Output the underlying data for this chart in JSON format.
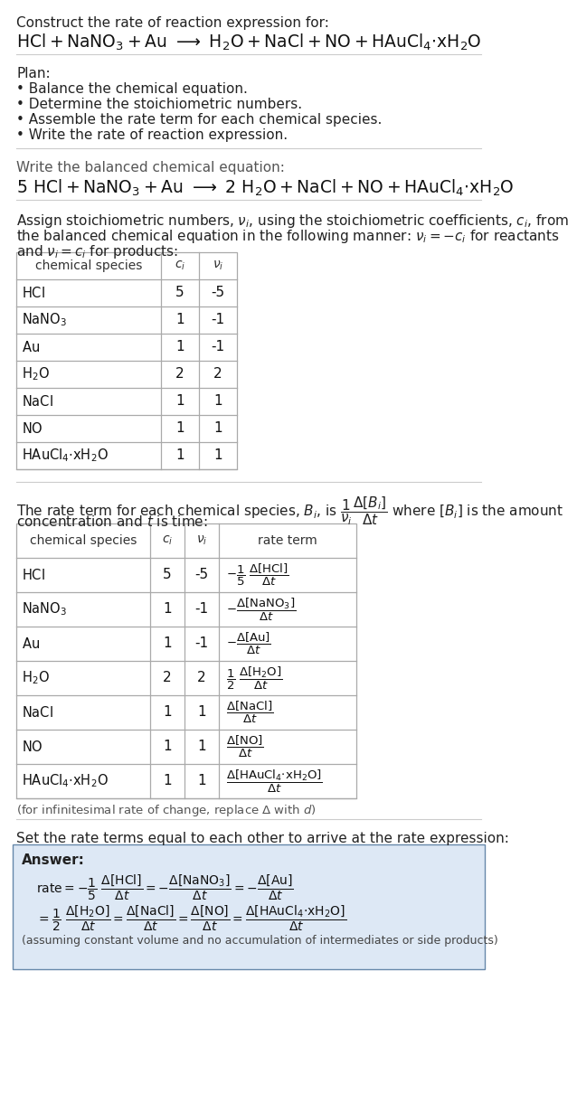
{
  "bg": "#ffffff",
  "text_color": "#111111",
  "gray": "#555555",
  "table_border": "#999999",
  "answer_bg": "#e8f0f8",
  "answer_border": "#7090b0",
  "section1_line1": "Construct the rate of reaction expression for:",
  "section1_eq": "$\\mathrm{HCl + NaNO_3 + Au\\ \\longrightarrow\\ H_2O + NaCl + NO + HAuCl_4{\\cdot}xH_2O}$",
  "section2_header": "Plan:",
  "section2_items": [
    "\\bullet\\ \\ \\mathrm{Balance\\ the\\ chemical\\ equation.}",
    "\\bullet\\ \\ \\mathrm{Determine\\ the\\ stoichiometric\\ numbers.}",
    "\\bullet\\ \\ \\mathrm{Assemble\\ the\\ rate\\ term\\ for\\ each\\ chemical\\ species.}",
    "\\bullet\\ \\ \\mathrm{Write\\ the\\ rate\\ of\\ reaction\\ expression.}"
  ],
  "section3_header": "Write the balanced chemical equation:",
  "section3_eq": "$\\mathrm{5\\ HCl + NaNO_3 + Au\\ \\longrightarrow\\ 2\\ H_2O + NaCl + NO + HAuCl_4{\\cdot}xH_2O}$",
  "section4_line1": "Assign stoichiometric numbers, $\\nu_i$, using the stoichiometric coefficients, $c_i$, from",
  "section4_line2": "the balanced chemical equation in the following manner: $\\nu_i = -c_i$ for reactants",
  "section4_line3": "and $\\nu_i = c_i$ for products:",
  "table1_species": [
    "HCl",
    "NaNO$_3$",
    "Au",
    "H$_2$O",
    "NaCl",
    "NO",
    "HAuCl$_4$$\\cdot$xH$_2$O"
  ],
  "table1_ci": [
    "5",
    "1",
    "1",
    "2",
    "1",
    "1",
    "1"
  ],
  "table1_vi": [
    "-5",
    "-1",
    "-1",
    "2",
    "1",
    "1",
    "1"
  ],
  "section5_line1": "The rate term for each chemical species, $B_i$, is $\\dfrac{1}{\\nu_i}\\dfrac{\\Delta[B_i]}{\\Delta t}$ where $[B_i]$ is the amount",
  "section5_line2": "concentration and $t$ is time:",
  "table2_species": [
    "HCl",
    "NaNO$_3$",
    "Au",
    "H$_2$O",
    "NaCl",
    "NO",
    "HAuCl$_4$$\\cdot$xH$_2$O"
  ],
  "table2_ci": [
    "5",
    "1",
    "1",
    "2",
    "1",
    "1",
    "1"
  ],
  "table2_vi": [
    "-5",
    "-1",
    "-1",
    "2",
    "1",
    "1",
    "1"
  ],
  "infinitesimal_note": "(for infinitesimal rate of change, replace $\\Delta$ with $d$)",
  "section6_line": "Set the rate terms equal to each other to arrive at the rate expression:",
  "answer_label": "Answer:",
  "answer_note": "(assuming constant volume and no accumulation of intermediates or side products)"
}
